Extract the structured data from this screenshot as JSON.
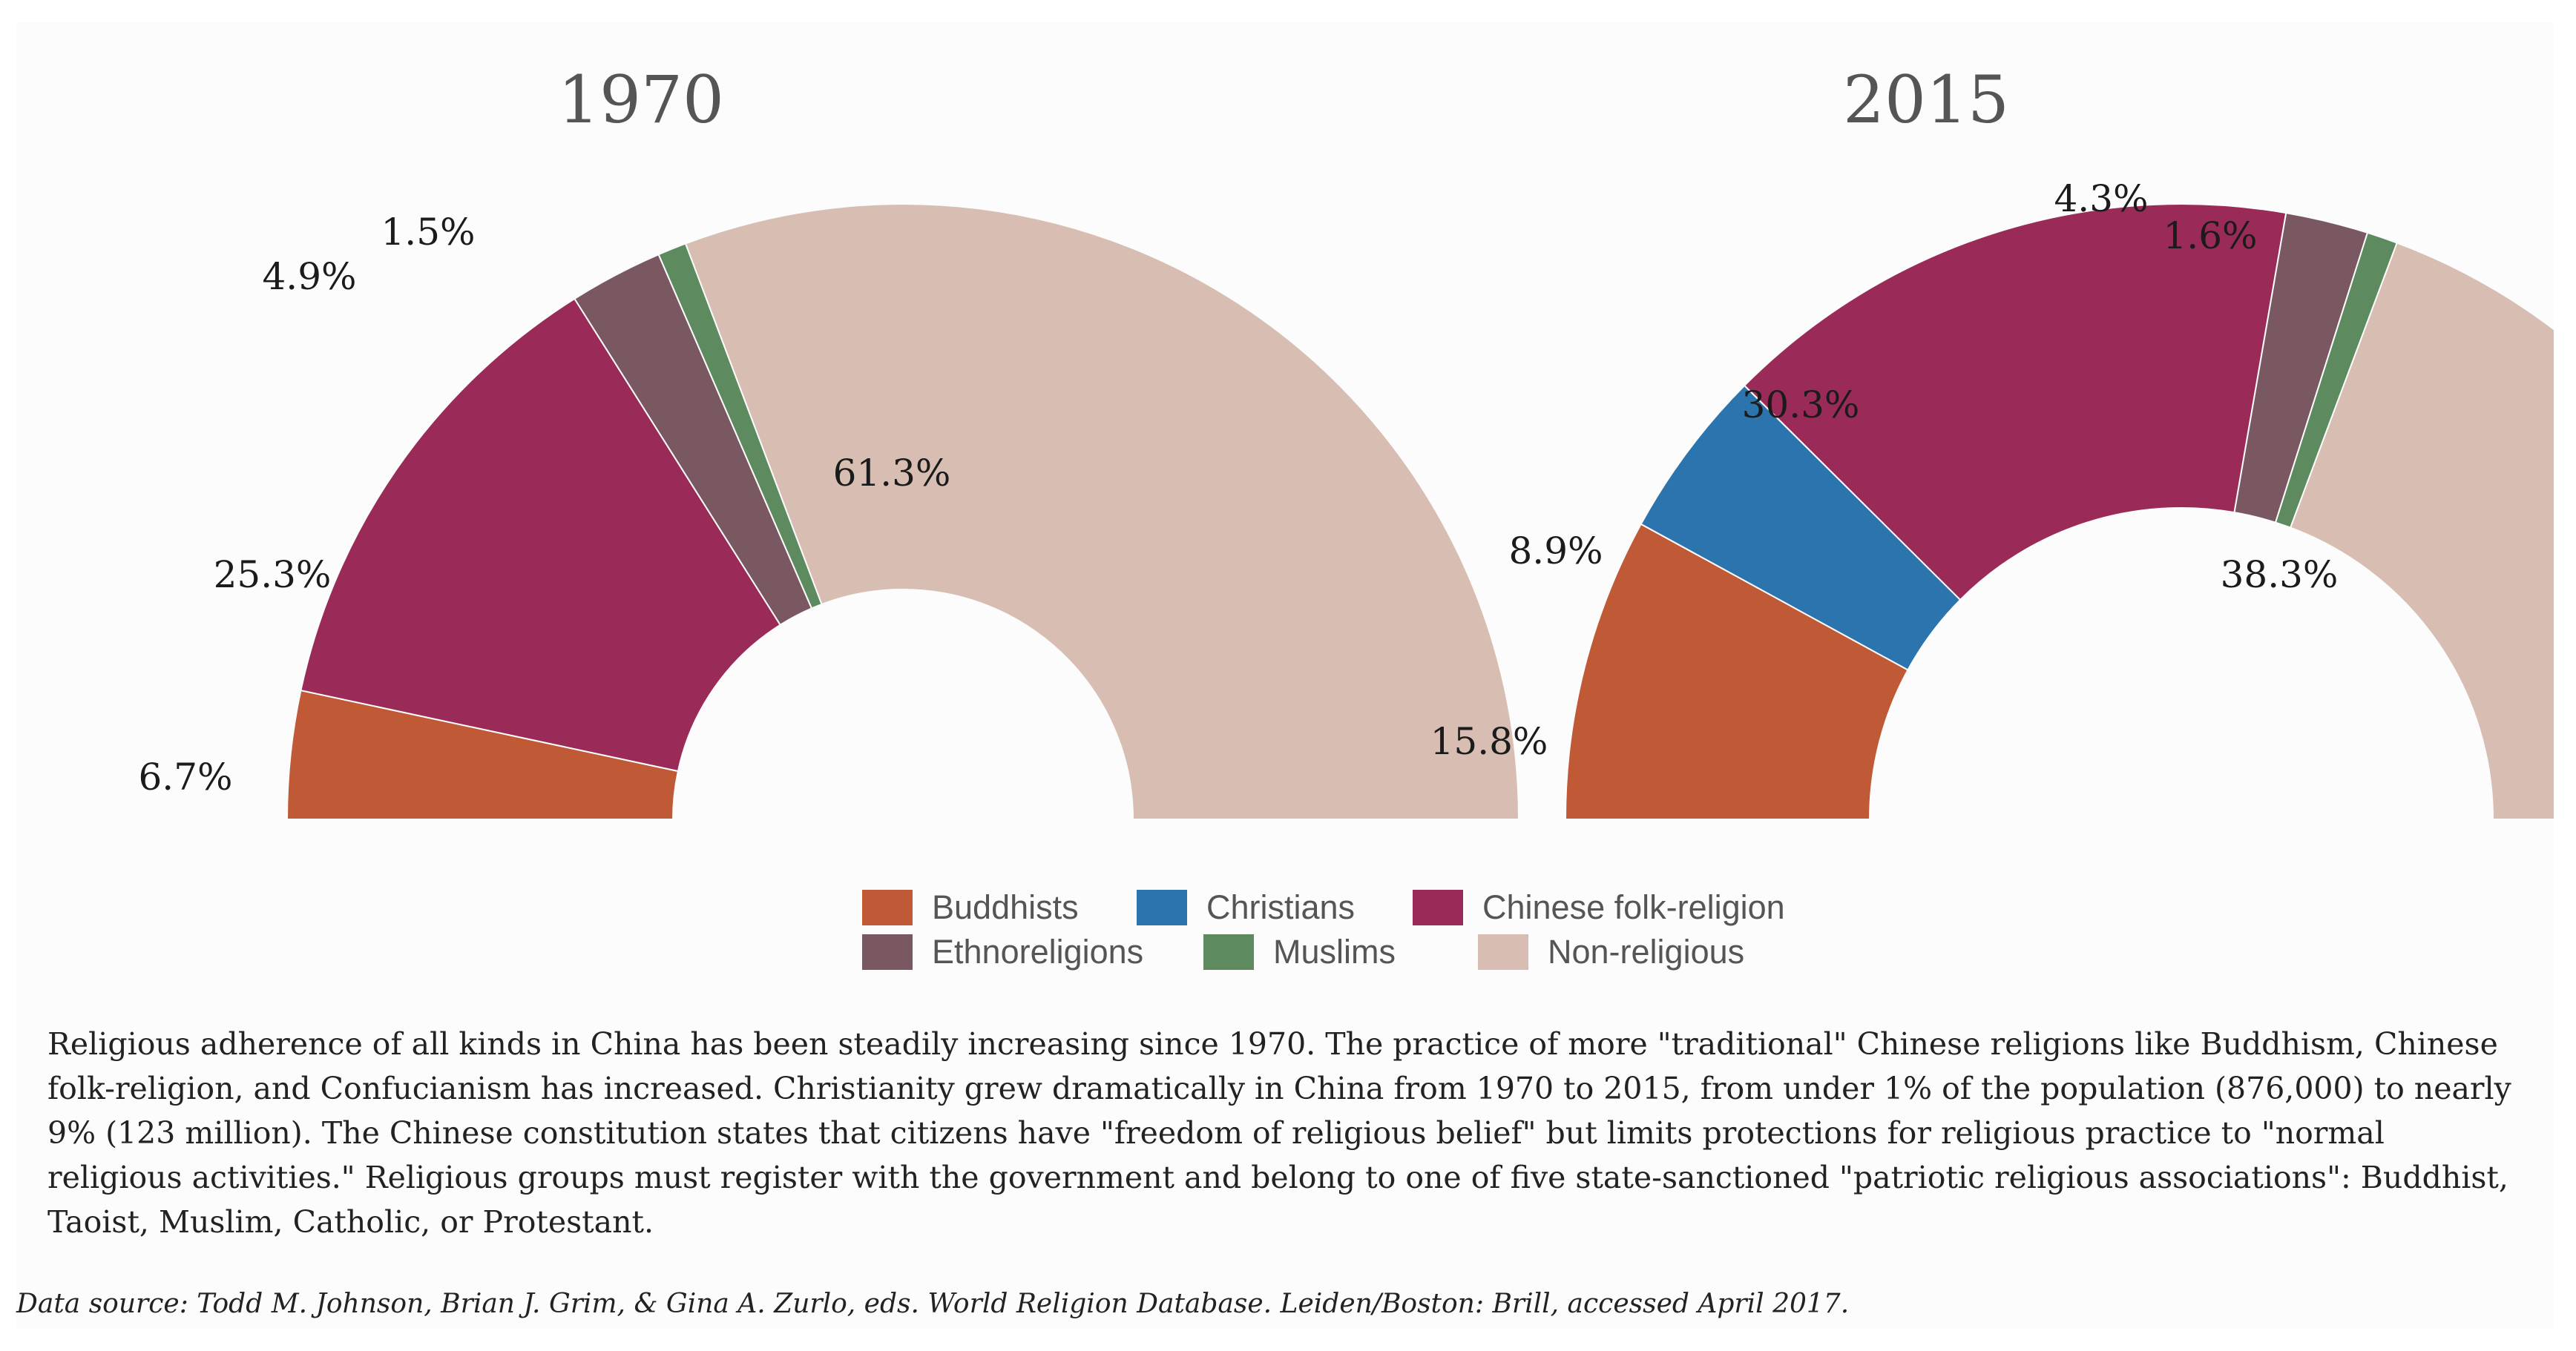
{
  "colors": {
    "Buddhists": "#c05a36",
    "Christians": "#2b74ad",
    "Chinese folk-religion": "#9a2a58",
    "Ethnoreligions": "#7a5862",
    "Muslims": "#5d8a5e",
    "Non-religious": "#d8beb2"
  },
  "chart_data": [
    {
      "type": "pie",
      "subtype": "half-donut",
      "title": "1970",
      "categories": [
        "Buddhists",
        "Chinese folk-religion",
        "Ethnoreligions",
        "Muslims",
        "Non-religious"
      ],
      "values": [
        6.7,
        25.3,
        4.9,
        1.5,
        61.3
      ],
      "labels": [
        "6.7%",
        "25.3%",
        "4.9%",
        "1.5%",
        "61.3%"
      ]
    },
    {
      "type": "pie",
      "subtype": "half-donut",
      "title": "2015",
      "categories": [
        "Buddhists",
        "Christians",
        "Chinese folk-religion",
        "Ethnoreligions",
        "Muslims",
        "Non-religious"
      ],
      "values": [
        15.8,
        8.9,
        30.3,
        4.3,
        1.6,
        38.3
      ],
      "labels": [
        "15.8%",
        "8.9%",
        "30.3%",
        "4.3%",
        "1.6%",
        "38.3%"
      ]
    }
  ],
  "legend": {
    "row1": [
      "Buddhists",
      "Christians",
      "Chinese folk-religion"
    ],
    "row2": [
      "Ethnoreligions",
      "Muslims",
      "Non-religious"
    ]
  },
  "caption": "Religious adherence of all kinds in China has been steadily increasing since 1970. The practice of more \"traditional\" Chinese religions like Buddhism, Chinese folk-religion, and Confucianism has increased. Christianity grew dramatically in China from 1970 to 2015, from under 1% of the population (876,000) to nearly 9% (123 million). The Chinese constitution states that citizens have \"freedom of religious belief\" but limits protections for religious practice to \"normal religious activities.\" Religious groups must register with the government and belong to one of five state-sanctioned \"patriotic religious associations\": Buddhist, Taoist, Muslim, Catholic, or Protestant.",
  "source": "Data source: Todd M. Johnson, Brian J. Grim, & Gina A. Zurlo, eds. World Religion Database. Leiden/Boston: Brill, accessed April 2017."
}
